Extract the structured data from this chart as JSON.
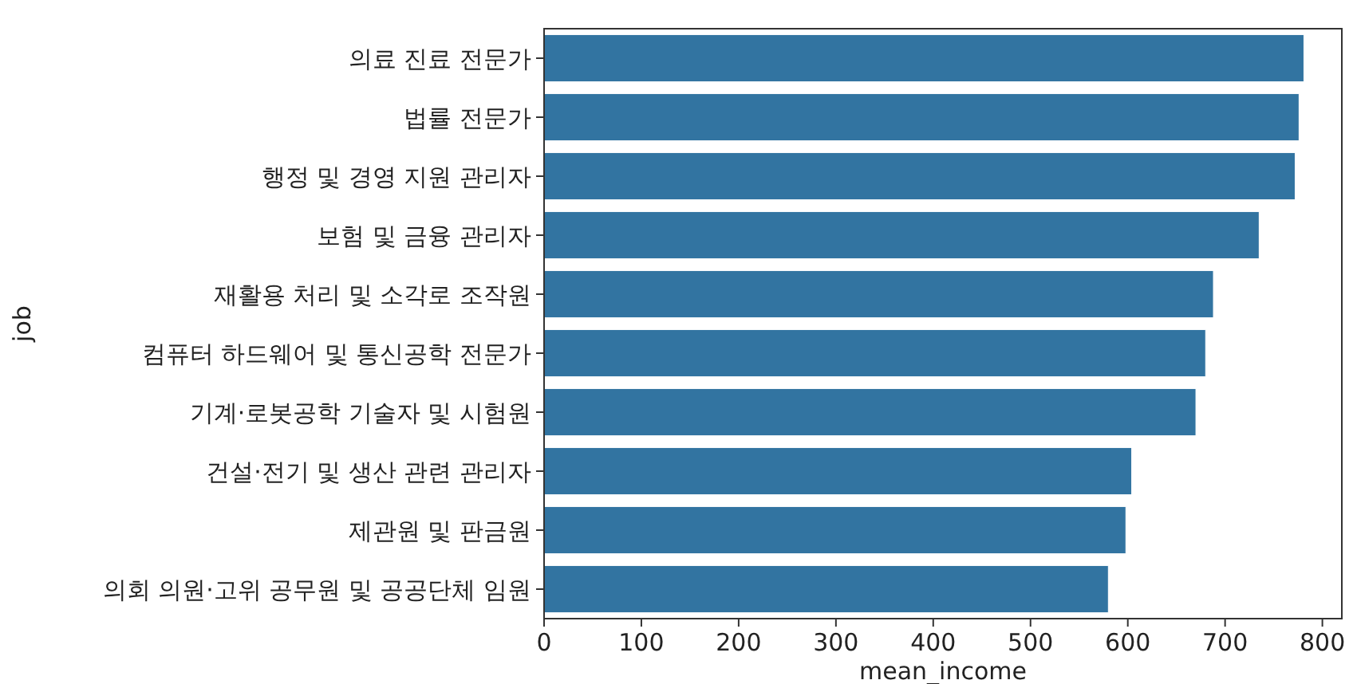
{
  "chart_data": {
    "type": "bar",
    "orientation": "horizontal",
    "xlabel": "mean_income",
    "ylabel": "job",
    "categories": [
      "의료 진료 전문가",
      "법률 전문가",
      "행정 및 경영 지원 관리자",
      "보험 및 금융 관리자",
      "재활용 처리 및 소각로 조작원",
      "컴퓨터 하드웨어 및 통신공학 전문가",
      "기계·로봇공학 기술자 및 시험원",
      "건설·전기 및 생산 관련 관리자",
      "제관원 및 판금원",
      "의회 의원·고위 공무원 및 공공단체 임원"
    ],
    "values": [
      781,
      776,
      772,
      735,
      688,
      680,
      670,
      604,
      598,
      580
    ],
    "color": "#3274a1",
    "xlim": [
      0,
      820
    ],
    "xticks": [
      0,
      100,
      200,
      300,
      400,
      500,
      600,
      700,
      800
    ],
    "grid": false
  }
}
